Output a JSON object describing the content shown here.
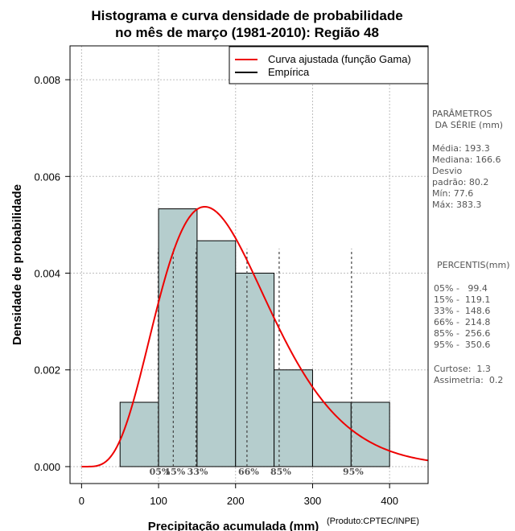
{
  "chart_data": {
    "type": "bar",
    "title": [
      "Histograma e curva densidade de probabilidade",
      "no mês de março (1981-2010): Região 48"
    ],
    "xlabel": "Precipitação acumulada (mm)",
    "ylabel": "Densidade de probabilidade",
    "xlim": [
      -15,
      450
    ],
    "ylim": [
      -0.00035,
      0.0087
    ],
    "x_ticks": [
      0,
      100,
      200,
      300,
      400
    ],
    "y_ticks": [
      0.0,
      0.002,
      0.004,
      0.006,
      0.008
    ],
    "y_tick_labels": [
      "0.000",
      "0.002",
      "0.004",
      "0.006",
      "0.008"
    ],
    "grid": true,
    "bins": [
      {
        "start": 50,
        "end": 100,
        "density": 0.00133
      },
      {
        "start": 100,
        "end": 150,
        "density": 0.00533
      },
      {
        "start": 150,
        "end": 200,
        "density": 0.00467
      },
      {
        "start": 200,
        "end": 250,
        "density": 0.004
      },
      {
        "start": 250,
        "end": 300,
        "density": 0.002
      },
      {
        "start": 300,
        "end": 350,
        "density": 0.00133
      },
      {
        "start": 350,
        "end": 400,
        "density": 0.00133
      }
    ],
    "bar_color": "#b5cdcd",
    "curve": {
      "name": "Curva ajustada (função Gama)",
      "mean": 193.3,
      "sd": 80.2,
      "color": "#ee0000"
    },
    "legend": {
      "position": "top-right",
      "entries": [
        {
          "label": "Curva ajustada (função Gama)",
          "color": "#ee0000"
        },
        {
          "label": "Empírica",
          "color": "#000000"
        }
      ]
    },
    "percentile_markers": [
      {
        "label": "05%",
        "value": 99.4
      },
      {
        "label": "15%",
        "value": 119.1
      },
      {
        "label": "33%",
        "value": 148.6
      },
      {
        "label": "66%",
        "value": 214.8
      },
      {
        "label": "85%",
        "value": 256.6
      },
      {
        "label": "95%",
        "value": 350.6
      }
    ]
  },
  "side_panel": {
    "params_heading": [
      "PARÂMETROS",
      " DA SÉRIE (mm)"
    ],
    "stats": [
      "Média:  193.3",
      "Mediana:  166.6",
      "Desvio",
      "padrão:  80.2",
      "Mín:  77.6",
      "Máx:  383.3"
    ],
    "percentis_heading": "PERCENTIS(mm)",
    "percentis": [
      "05% -   99.4",
      "15% -  119.1",
      "33% -  148.6",
      "66% -  214.8",
      "85% -  256.6",
      "95% -  350.6"
    ],
    "extra": [
      "Curtose:  1.3",
      "Assimetria:  0.2"
    ]
  },
  "credit": "(Produto:CPTEC/INPE)"
}
